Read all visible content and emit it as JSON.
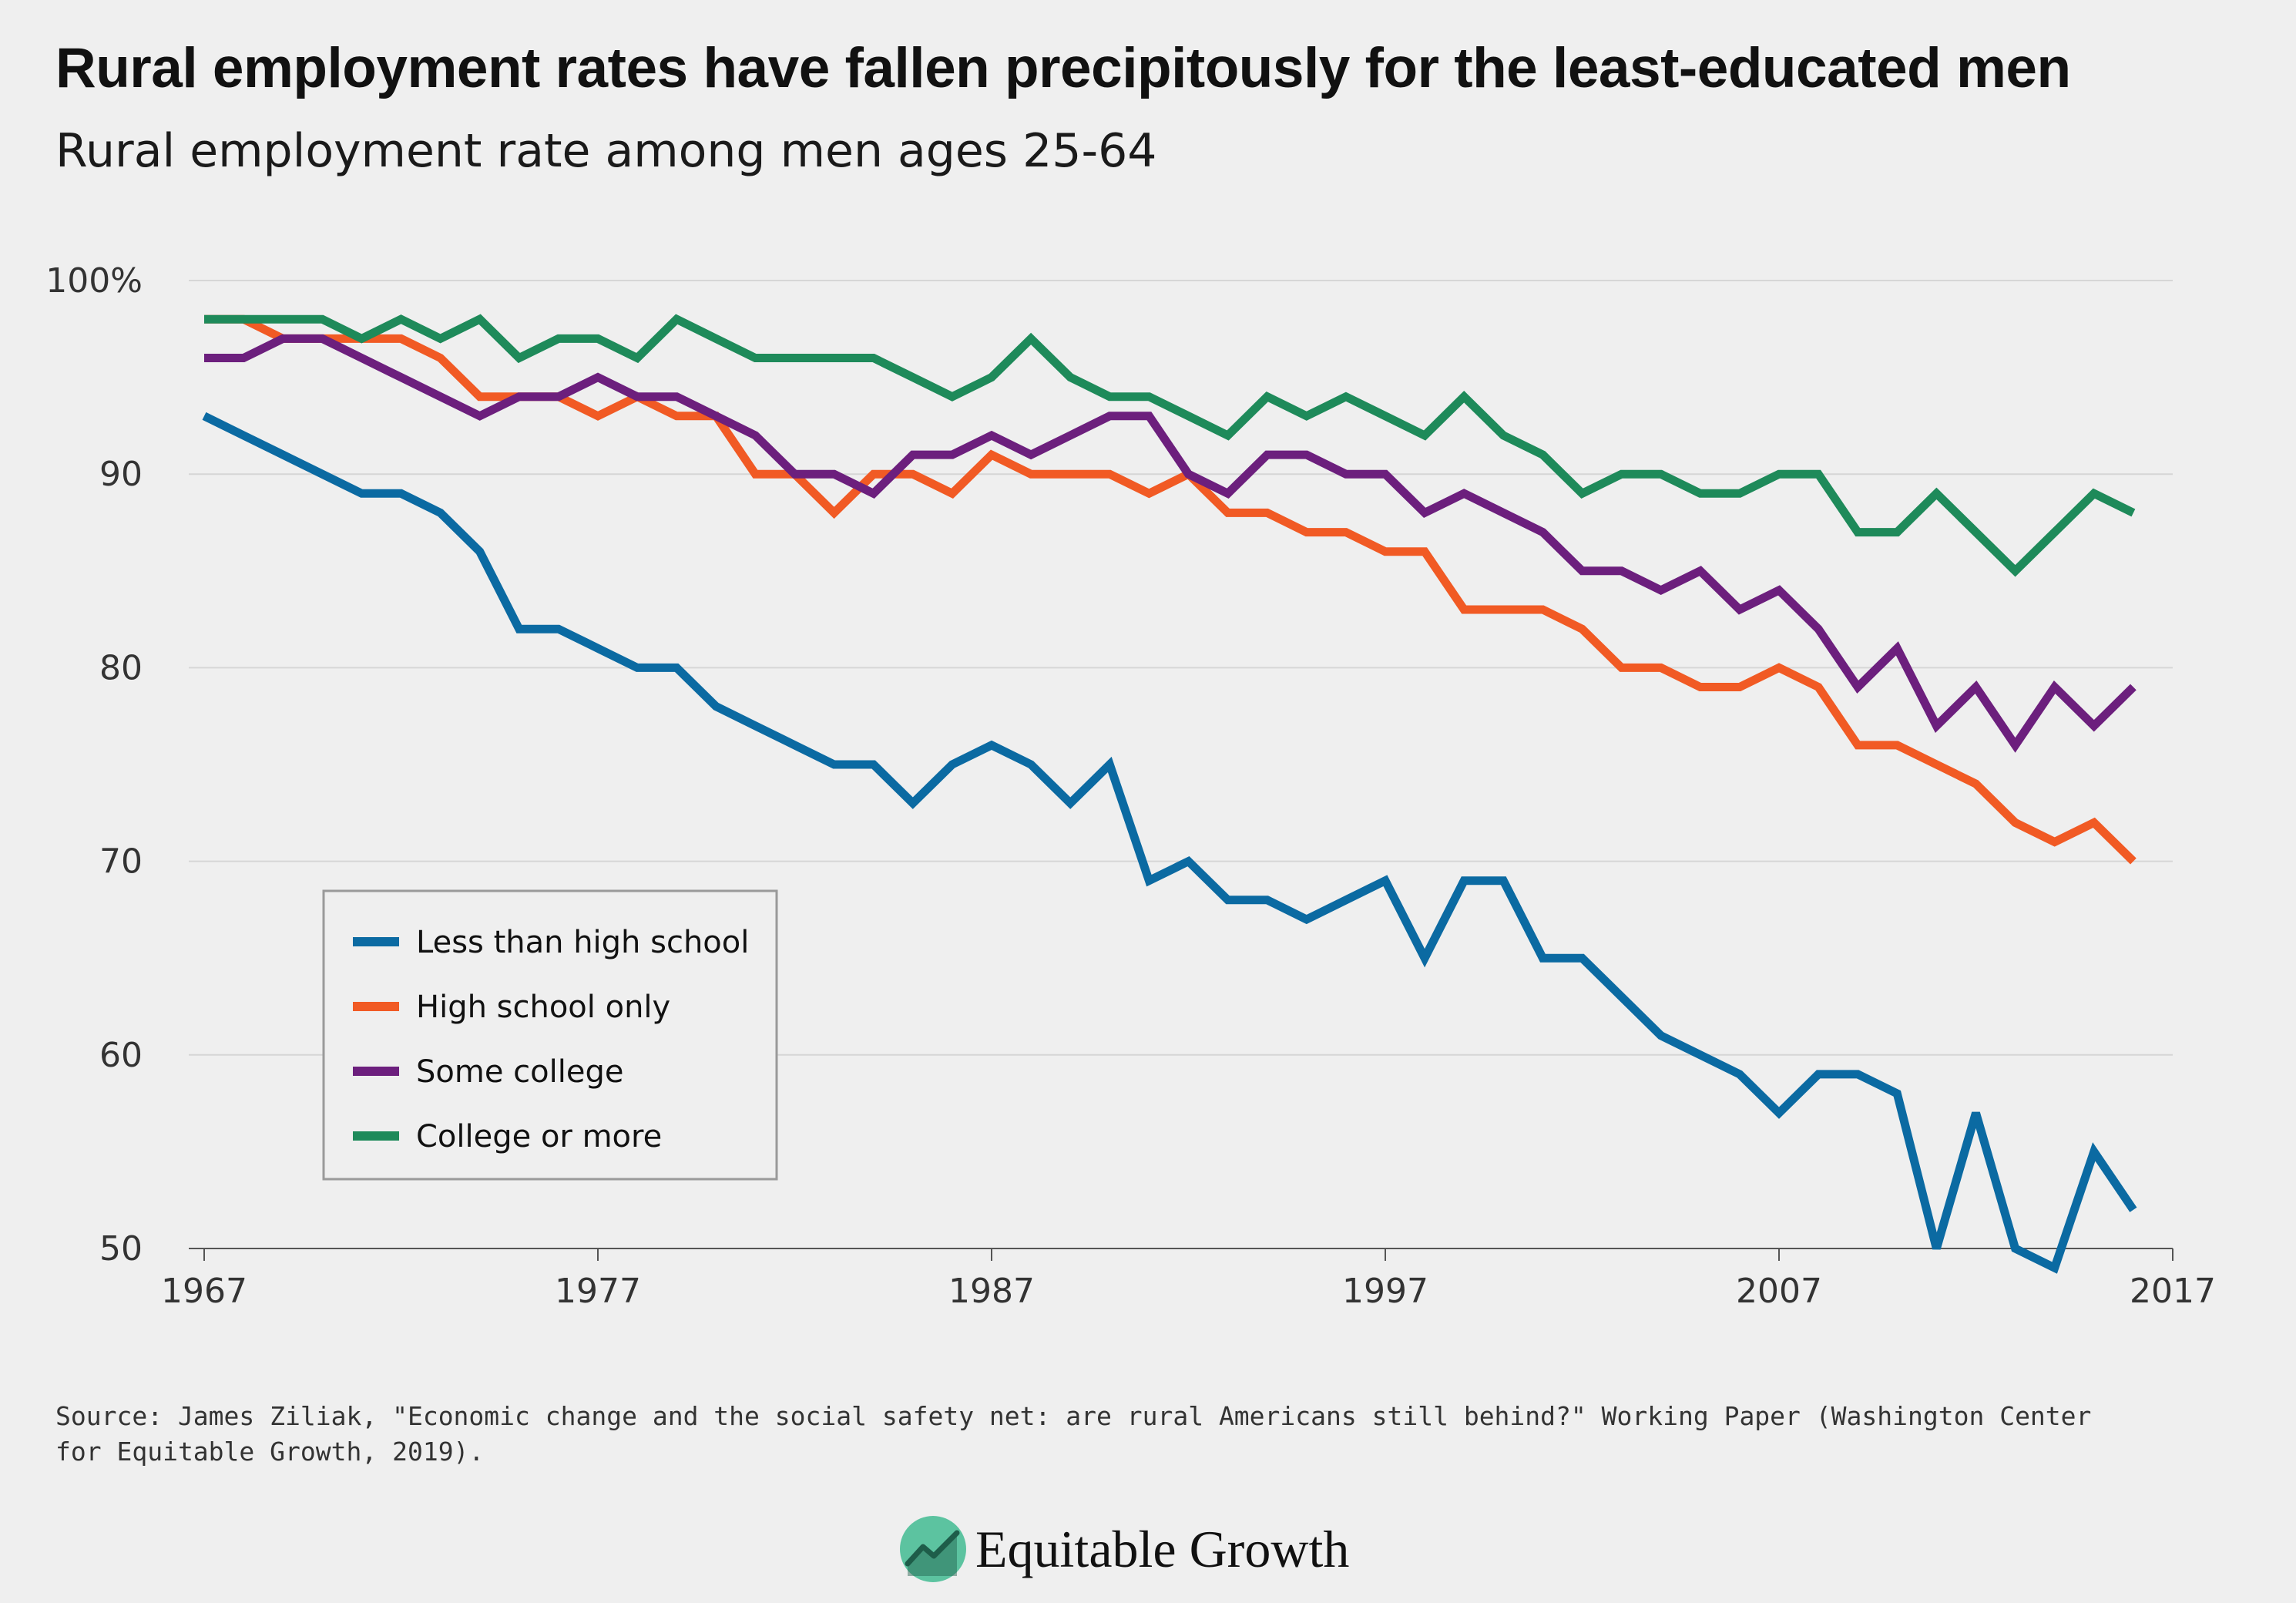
{
  "title": "Rural employment rates have fallen precipitously for the least-educated men",
  "subtitle": "Rural employment rate among men ages 25-64",
  "source": "Source: James Ziliak, \"Economic change and the social safety net: are rural Americans still behind?\" Working Paper (Washington Center for Equitable Growth, 2019).",
  "brand": {
    "name": "Equitable Growth",
    "logo_icon": "rising-trend-icon"
  },
  "chart_data": {
    "type": "line",
    "title": "Rural employment rates have fallen precipitously for the least-educated men",
    "subtitle": "Rural employment rate among men ages 25-64",
    "xlabel": "",
    "ylabel": "",
    "x": [
      1967,
      1968,
      1969,
      1970,
      1971,
      1972,
      1973,
      1974,
      1975,
      1976,
      1977,
      1978,
      1979,
      1980,
      1981,
      1982,
      1983,
      1984,
      1985,
      1986,
      1987,
      1988,
      1989,
      1990,
      1991,
      1992,
      1993,
      1994,
      1995,
      1996,
      1997,
      1998,
      1999,
      2000,
      2001,
      2002,
      2003,
      2004,
      2005,
      2006,
      2007,
      2008,
      2009,
      2010,
      2011,
      2012,
      2013,
      2014,
      2015,
      2016
    ],
    "xlim": [
      1967,
      2017
    ],
    "ylim": [
      50,
      100
    ],
    "x_ticks": [
      {
        "value": 1967,
        "label": "1967"
      },
      {
        "value": 1977,
        "label": "1977"
      },
      {
        "value": 1987,
        "label": "1987"
      },
      {
        "value": 1997,
        "label": "1997"
      },
      {
        "value": 2007,
        "label": "2007"
      },
      {
        "value": 2017,
        "label": "2017"
      }
    ],
    "y_ticks": [
      {
        "value": 100,
        "label": "100%"
      },
      {
        "value": 90,
        "label": "90"
      },
      {
        "value": 80,
        "label": "80"
      },
      {
        "value": 70,
        "label": "70"
      },
      {
        "value": 60,
        "label": "60"
      },
      {
        "value": 50,
        "label": "50"
      }
    ],
    "grid": true,
    "legend_position": "bottom-left",
    "series": [
      {
        "name": "Less than high school",
        "color": "#0b6aa2",
        "values": [
          93,
          92,
          91,
          90,
          89,
          89,
          88,
          86,
          82,
          82,
          81,
          80,
          80,
          78,
          77,
          76,
          75,
          75,
          73,
          75,
          76,
          75,
          73,
          75,
          69,
          70,
          68,
          68,
          67,
          68,
          69,
          65,
          69,
          69,
          65,
          65,
          63,
          61,
          60,
          59,
          57,
          59,
          59,
          58,
          50,
          57,
          50,
          49,
          55,
          52
        ]
      },
      {
        "name": "High school only",
        "color": "#f15a24",
        "values": [
          98,
          98,
          97,
          97,
          97,
          97,
          96,
          94,
          94,
          94,
          93,
          94,
          93,
          93,
          90,
          90,
          88,
          90,
          90,
          89,
          91,
          90,
          90,
          90,
          89,
          90,
          88,
          88,
          87,
          87,
          86,
          86,
          83,
          83,
          83,
          82,
          80,
          80,
          79,
          79,
          80,
          79,
          76,
          76,
          75,
          74,
          72,
          71,
          72,
          70
        ]
      },
      {
        "name": "Some college",
        "color": "#6c1f7d",
        "values": [
          96,
          96,
          97,
          97,
          96,
          95,
          94,
          93,
          94,
          94,
          95,
          94,
          94,
          93,
          92,
          90,
          90,
          89,
          91,
          91,
          92,
          91,
          92,
          93,
          93,
          90,
          89,
          91,
          91,
          90,
          90,
          88,
          89,
          88,
          87,
          85,
          85,
          84,
          85,
          83,
          84,
          82,
          79,
          81,
          77,
          79,
          76,
          79,
          77,
          79
        ]
      },
      {
        "name": "College or more",
        "color": "#1e8a5a",
        "values": [
          98,
          98,
          98,
          98,
          97,
          98,
          97,
          98,
          96,
          97,
          97,
          96,
          98,
          97,
          96,
          96,
          96,
          96,
          95,
          94,
          95,
          97,
          95,
          94,
          94,
          93,
          92,
          94,
          93,
          94,
          93,
          92,
          94,
          92,
          91,
          89,
          90,
          90,
          89,
          89,
          90,
          90,
          87,
          87,
          89,
          87,
          85,
          87,
          89,
          88
        ]
      }
    ]
  }
}
